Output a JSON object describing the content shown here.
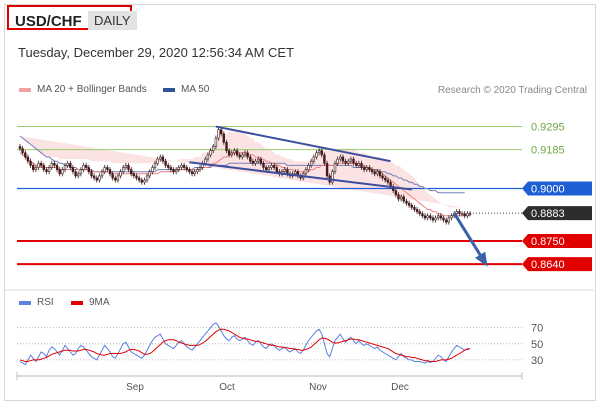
{
  "header": {
    "symbol": "USD/CHF",
    "period": "DAILY",
    "datetime": "Tuesday, December 29, 2020 12:56:34 AM CET",
    "research_credit": "Research © 2020 Trading Central"
  },
  "legend": {
    "ma20": "MA 20 + Bollinger Bands",
    "ma50": "MA 50",
    "rsi": "RSI",
    "ma9": "9MA"
  },
  "colors": {
    "green_level": "#9acc6e",
    "blue_level": "#1f5fd6",
    "red_level": "#e00000",
    "current": "#2d2d2d",
    "ma50": "#7080b8",
    "bollinger_fill": "#fbdcdc",
    "ma20": "#f08080",
    "channel": "#3b4f9e",
    "arrow": "#3b62a8",
    "rsi": "#5b7fe0",
    "ma9": "#e00000"
  },
  "chart_data": [
    {
      "type": "candlestick",
      "title": "USD/CHF",
      "x_labels": [
        "Sep",
        "Oct",
        "Nov",
        "Dec"
      ],
      "ylim": [
        0.855,
        0.935
      ],
      "levels": [
        {
          "value": 0.9295,
          "label": "0.9295",
          "style": "green-line"
        },
        {
          "value": 0.9185,
          "label": "0.9185",
          "style": "green-line"
        },
        {
          "value": 0.9,
          "label": "0.9000",
          "style": "blue-line"
        },
        {
          "value": 0.8883,
          "label": "0.8883",
          "style": "current-price"
        },
        {
          "value": 0.875,
          "label": "0.8750",
          "style": "red-line"
        },
        {
          "value": 0.864,
          "label": "0.8640",
          "style": "red-line"
        }
      ],
      "close": [
        0.919,
        0.917,
        0.915,
        0.913,
        0.911,
        0.909,
        0.91,
        0.912,
        0.911,
        0.909,
        0.908,
        0.91,
        0.912,
        0.911,
        0.909,
        0.907,
        0.909,
        0.911,
        0.912,
        0.91,
        0.908,
        0.906,
        0.907,
        0.909,
        0.911,
        0.91,
        0.908,
        0.906,
        0.905,
        0.904,
        0.906,
        0.908,
        0.91,
        0.909,
        0.907,
        0.905,
        0.904,
        0.906,
        0.908,
        0.91,
        0.911,
        0.909,
        0.907,
        0.906,
        0.905,
        0.904,
        0.903,
        0.904,
        0.906,
        0.908,
        0.91,
        0.912,
        0.914,
        0.915,
        0.913,
        0.911,
        0.91,
        0.909,
        0.908,
        0.909,
        0.91,
        0.911,
        0.91,
        0.909,
        0.908,
        0.907,
        0.908,
        0.909,
        0.91,
        0.912,
        0.914,
        0.916,
        0.918,
        0.92,
        0.924,
        0.928,
        0.926,
        0.922,
        0.918,
        0.916,
        0.917,
        0.918,
        0.916,
        0.915,
        0.916,
        0.917,
        0.915,
        0.913,
        0.912,
        0.913,
        0.914,
        0.912,
        0.91,
        0.909,
        0.91,
        0.911,
        0.91,
        0.908,
        0.907,
        0.908,
        0.909,
        0.907,
        0.906,
        0.907,
        0.908,
        0.906,
        0.905,
        0.907,
        0.909,
        0.911,
        0.913,
        0.915,
        0.917,
        0.918,
        0.916,
        0.912,
        0.906,
        0.903,
        0.908,
        0.912,
        0.914,
        0.915,
        0.913,
        0.912,
        0.913,
        0.914,
        0.912,
        0.911,
        0.912,
        0.91,
        0.909,
        0.91,
        0.909,
        0.908,
        0.907,
        0.908,
        0.906,
        0.905,
        0.904,
        0.903,
        0.901,
        0.899,
        0.897,
        0.895,
        0.896,
        0.894,
        0.893,
        0.892,
        0.891,
        0.89,
        0.889,
        0.888,
        0.887,
        0.886,
        0.887,
        0.886,
        0.885,
        0.886,
        0.887,
        0.886,
        0.885,
        0.884,
        0.886,
        0.887,
        0.888,
        0.889,
        0.888,
        0.888,
        0.887,
        0.888,
        0.888
      ],
      "ma20": [
        0.917,
        0.916,
        0.915,
        0.914,
        0.913,
        0.912,
        0.911,
        0.911,
        0.91,
        0.91,
        0.91,
        0.91,
        0.91,
        0.91,
        0.91,
        0.909,
        0.909,
        0.909,
        0.909,
        0.909,
        0.909,
        0.909,
        0.909,
        0.909,
        0.909,
        0.909,
        0.909,
        0.908,
        0.908,
        0.908,
        0.908,
        0.908,
        0.908,
        0.908,
        0.908,
        0.907,
        0.907,
        0.907,
        0.907,
        0.907,
        0.907,
        0.907,
        0.907,
        0.907,
        0.907,
        0.907,
        0.907,
        0.907,
        0.907,
        0.907,
        0.907,
        0.907,
        0.907,
        0.908,
        0.908,
        0.908,
        0.908,
        0.908,
        0.908,
        0.908,
        0.909,
        0.909,
        0.909,
        0.909,
        0.909,
        0.909,
        0.909,
        0.909,
        0.909,
        0.91,
        0.91,
        0.91,
        0.911,
        0.912,
        0.912,
        0.913,
        0.914,
        0.915,
        0.915,
        0.916,
        0.916,
        0.917,
        0.917,
        0.917,
        0.917,
        0.917,
        0.916,
        0.916,
        0.916,
        0.915,
        0.915,
        0.914,
        0.914,
        0.913,
        0.913,
        0.912,
        0.912,
        0.911,
        0.911,
        0.91,
        0.91,
        0.909,
        0.909,
        0.909,
        0.908,
        0.908,
        0.908,
        0.908,
        0.908,
        0.908,
        0.909,
        0.909,
        0.91,
        0.91,
        0.911,
        0.911,
        0.911,
        0.911,
        0.911,
        0.911,
        0.912,
        0.912,
        0.912,
        0.912,
        0.912,
        0.912,
        0.912,
        0.912,
        0.911,
        0.911,
        0.911,
        0.91,
        0.91,
        0.909,
        0.909,
        0.908,
        0.908,
        0.907,
        0.906,
        0.905,
        0.904,
        0.903,
        0.902,
        0.901,
        0.9,
        0.899,
        0.898,
        0.897,
        0.896,
        0.895,
        0.894,
        0.893,
        0.892,
        0.891,
        0.89,
        0.89,
        0.889,
        0.889,
        0.888,
        0.888,
        0.887,
        0.887,
        0.887,
        0.887,
        0.887,
        0.887,
        0.887,
        0.887,
        0.887,
        0.887,
        0.887
      ],
      "ma50": [
        0.925,
        0.924,
        0.923,
        0.922,
        0.921,
        0.92,
        0.919,
        0.918,
        0.917,
        0.916,
        0.915,
        0.915,
        0.914,
        0.913,
        0.913,
        0.912,
        0.912,
        0.911,
        0.911,
        0.91,
        0.91,
        0.91,
        0.909,
        0.909,
        0.909,
        0.909,
        0.909,
        0.909,
        0.908,
        0.908,
        0.908,
        0.908,
        0.908,
        0.908,
        0.908,
        0.908,
        0.908,
        0.908,
        0.908,
        0.908,
        0.908,
        0.908,
        0.908,
        0.908,
        0.908,
        0.908,
        0.908,
        0.908,
        0.908,
        0.908,
        0.908,
        0.908,
        0.909,
        0.909,
        0.909,
        0.909,
        0.909,
        0.909,
        0.909,
        0.909,
        0.909,
        0.909,
        0.909,
        0.909,
        0.909,
        0.909,
        0.91,
        0.91,
        0.91,
        0.91,
        0.91,
        0.91,
        0.91,
        0.911,
        0.911,
        0.911,
        0.911,
        0.911,
        0.911,
        0.912,
        0.912,
        0.912,
        0.912,
        0.912,
        0.912,
        0.912,
        0.912,
        0.912,
        0.912,
        0.912,
        0.912,
        0.912,
        0.912,
        0.912,
        0.912,
        0.912,
        0.912,
        0.912,
        0.912,
        0.912,
        0.912,
        0.911,
        0.911,
        0.911,
        0.911,
        0.911,
        0.911,
        0.911,
        0.911,
        0.911,
        0.911,
        0.911,
        0.911,
        0.911,
        0.911,
        0.911,
        0.911,
        0.911,
        0.911,
        0.911,
        0.911,
        0.911,
        0.911,
        0.911,
        0.911,
        0.911,
        0.91,
        0.91,
        0.91,
        0.91,
        0.91,
        0.91,
        0.909,
        0.909,
        0.909,
        0.909,
        0.908,
        0.908,
        0.908,
        0.907,
        0.907,
        0.906,
        0.906,
        0.905,
        0.905,
        0.904,
        0.904,
        0.903,
        0.903,
        0.902,
        0.902,
        0.901,
        0.901,
        0.9,
        0.9,
        0.899,
        0.899,
        0.899,
        0.898,
        0.898,
        0.898,
        0.898,
        0.898,
        0.898,
        0.898,
        0.898,
        0.898,
        0.898,
        0.898
      ],
      "band_width": [
        0.008,
        0.008,
        0.008,
        0.008,
        0.008,
        0.008,
        0.007,
        0.007,
        0.006,
        0.006,
        0.005,
        0.005,
        0.005,
        0.005,
        0.005,
        0.005,
        0.005,
        0.005,
        0.005,
        0.005,
        0.005,
        0.005,
        0.005,
        0.005,
        0.005,
        0.005,
        0.005,
        0.005,
        0.005,
        0.005,
        0.005,
        0.005,
        0.005,
        0.005,
        0.005,
        0.005,
        0.005,
        0.005,
        0.005,
        0.005,
        0.005,
        0.005,
        0.005,
        0.005,
        0.005,
        0.005,
        0.005,
        0.005,
        0.005,
        0.005,
        0.005,
        0.005,
        0.005,
        0.005,
        0.005,
        0.005,
        0.005,
        0.005,
        0.005,
        0.005,
        0.005,
        0.005,
        0.005,
        0.005,
        0.005,
        0.005,
        0.006,
        0.006,
        0.006,
        0.007,
        0.007,
        0.008,
        0.008,
        0.009,
        0.01,
        0.011,
        0.011,
        0.011,
        0.011,
        0.011,
        0.011,
        0.01,
        0.01,
        0.01,
        0.009,
        0.009,
        0.009,
        0.008,
        0.008,
        0.007,
        0.007,
        0.007,
        0.006,
        0.006,
        0.006,
        0.006,
        0.005,
        0.005,
        0.005,
        0.005,
        0.005,
        0.005,
        0.005,
        0.005,
        0.005,
        0.005,
        0.005,
        0.005,
        0.005,
        0.005,
        0.005,
        0.006,
        0.006,
        0.006,
        0.007,
        0.007,
        0.007,
        0.007,
        0.007,
        0.007,
        0.007,
        0.007,
        0.007,
        0.007,
        0.007,
        0.007,
        0.007,
        0.006,
        0.006,
        0.006,
        0.006,
        0.006,
        0.006,
        0.006,
        0.006,
        0.007,
        0.007,
        0.007,
        0.008,
        0.008,
        0.009,
        0.009,
        0.009,
        0.01,
        0.01,
        0.01,
        0.01,
        0.01,
        0.01,
        0.01,
        0.009,
        0.009,
        0.009,
        0.008,
        0.008,
        0.007,
        0.007,
        0.006,
        0.006,
        0.005,
        0.005,
        0.005,
        0.004,
        0.004,
        0.004,
        0.004,
        0.004,
        0.004
      ],
      "trendlines": [
        {
          "name": "channel-upper",
          "from": [
            74,
            0.9295
          ],
          "to": [
            140,
            0.913
          ]
        },
        {
          "name": "channel-lower",
          "from": [
            64,
            0.9125
          ],
          "to": [
            148,
            0.8995
          ]
        },
        {
          "name": "forecast-arrow",
          "from": [
            164,
            0.8883
          ],
          "to": [
            176,
            0.864
          ]
        }
      ]
    },
    {
      "type": "line",
      "title": "RSI",
      "ylim": [
        15,
        82
      ],
      "y_ticks": [
        70,
        50,
        30
      ],
      "series": [
        {
          "name": "RSI",
          "values": [
            28,
            26,
            24,
            30,
            36,
            32,
            28,
            34,
            40,
            38,
            34,
            42,
            46,
            44,
            40,
            36,
            42,
            48,
            44,
            40,
            36,
            38,
            44,
            48,
            46,
            42,
            38,
            34,
            32,
            30,
            36,
            42,
            48,
            44,
            40,
            34,
            32,
            38,
            44,
            50,
            52,
            46,
            40,
            38,
            36,
            34,
            32,
            36,
            42,
            48,
            54,
            58,
            60,
            62,
            56,
            50,
            48,
            46,
            44,
            48,
            52,
            54,
            50,
            46,
            44,
            42,
            46,
            50,
            54,
            58,
            62,
            66,
            70,
            74,
            76,
            72,
            66,
            60,
            56,
            54,
            58,
            60,
            56,
            54,
            56,
            58,
            54,
            50,
            48,
            52,
            54,
            50,
            46,
            44,
            48,
            50,
            48,
            44,
            42,
            44,
            46,
            42,
            40,
            42,
            44,
            40,
            38,
            42,
            48,
            54,
            58,
            62,
            66,
            68,
            62,
            50,
            38,
            34,
            44,
            54,
            58,
            62,
            56,
            52,
            56,
            58,
            54,
            50,
            54,
            50,
            48,
            50,
            48,
            46,
            44,
            46,
            42,
            40,
            38,
            36,
            34,
            32,
            30,
            34,
            38,
            34,
            32,
            30,
            30,
            28,
            28,
            28,
            27,
            26,
            28,
            27,
            28,
            32,
            36,
            34,
            30,
            28,
            34,
            40,
            44,
            48,
            46,
            44,
            42,
            44,
            44
          ]
        },
        {
          "name": "9MA",
          "values": [
            30,
            29,
            28,
            28,
            29,
            30,
            30,
            30,
            31,
            32,
            33,
            35,
            37,
            38,
            39,
            40,
            41,
            42,
            42,
            42,
            41,
            41,
            41,
            42,
            43,
            43,
            42,
            41,
            40,
            38,
            37,
            36,
            36,
            37,
            38,
            38,
            38,
            38,
            38,
            39,
            40,
            42,
            43,
            43,
            42,
            41,
            39,
            37,
            37,
            38,
            40,
            43,
            46,
            49,
            52,
            54,
            55,
            55,
            55,
            54,
            52,
            51,
            50,
            49,
            48,
            48,
            48,
            48,
            49,
            51,
            53,
            56,
            59,
            62,
            65,
            67,
            68,
            68,
            67,
            66,
            64,
            62,
            60,
            58,
            57,
            56,
            56,
            55,
            54,
            53,
            53,
            52,
            51,
            50,
            49,
            48,
            48,
            47,
            46,
            46,
            45,
            45,
            44,
            44,
            43,
            43,
            42,
            42,
            43,
            44,
            46,
            49,
            52,
            55,
            57,
            57,
            56,
            54,
            52,
            51,
            51,
            52,
            53,
            54,
            55,
            56,
            56,
            55,
            55,
            54,
            53,
            52,
            51,
            50,
            49,
            48,
            47,
            46,
            45,
            44,
            42,
            40,
            38,
            37,
            36,
            35,
            34,
            34,
            33,
            33,
            32,
            31,
            30,
            29,
            29,
            28,
            28,
            28,
            29,
            30,
            30,
            30,
            31,
            32,
            34,
            36,
            38,
            40,
            42,
            43,
            44
          ]
        }
      ]
    }
  ]
}
